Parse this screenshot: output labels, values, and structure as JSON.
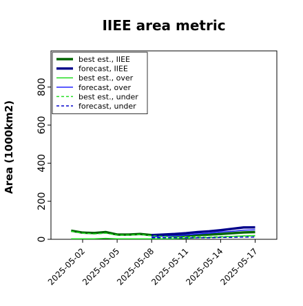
{
  "chart_data": {
    "type": "line",
    "title": "IIEE area metric",
    "xlabel": "",
    "ylabel": "Area (1000km2)",
    "ylim": [
      0,
      990
    ],
    "y_ticks": [
      0,
      200,
      400,
      600,
      800
    ],
    "x_ticks": [
      "2025-05-02",
      "2025-05-05",
      "2025-05-08",
      "2025-05-11",
      "2025-05-14",
      "2025-05-17"
    ],
    "x_tick_colors": [
      "#000000",
      "#000000",
      "#2e8b20",
      "#000000",
      "#000000",
      "#000000"
    ],
    "legend_position": "top-left",
    "grid": false,
    "dates": [
      "2025-05-01",
      "2025-05-02",
      "2025-05-03",
      "2025-05-04",
      "2025-05-05",
      "2025-05-06",
      "2025-05-07",
      "2025-05-08",
      "2025-05-09",
      "2025-05-10",
      "2025-05-11",
      "2025-05-12",
      "2025-05-13",
      "2025-05-14",
      "2025-05-15",
      "2025-05-16",
      "2025-05-17"
    ],
    "series": [
      {
        "name": "best est., IIEE",
        "color": "#006400",
        "style": "solid",
        "weight": "thick",
        "values": [
          45,
          35,
          33,
          38,
          25,
          25,
          28,
          22,
          20,
          18,
          20,
          22,
          25,
          28,
          32,
          36,
          38
        ]
      },
      {
        "name": "forecast, IIEE",
        "color": "#00008b",
        "style": "solid",
        "weight": "thick",
        "values": [
          null,
          null,
          null,
          null,
          null,
          null,
          null,
          22,
          25,
          28,
          32,
          38,
          42,
          48,
          55,
          62,
          63
        ]
      },
      {
        "name": "best est., over",
        "color": "#22dd22",
        "style": "solid",
        "weight": "thin",
        "values": [
          3,
          3,
          3,
          5,
          3,
          3,
          3,
          3,
          3,
          3,
          5,
          8,
          10,
          12,
          15,
          18,
          20
        ]
      },
      {
        "name": "forecast, over",
        "color": "#2222ff",
        "style": "solid",
        "weight": "thin",
        "values": [
          null,
          null,
          null,
          null,
          null,
          null,
          null,
          12,
          15,
          18,
          22,
          28,
          32,
          38,
          42,
          48,
          50
        ]
      },
      {
        "name": "best est., under",
        "color": "#22dd22",
        "style": "dashed",
        "weight": "thin",
        "values": [
          42,
          32,
          28,
          32,
          22,
          22,
          25,
          18,
          15,
          12,
          12,
          12,
          12,
          14,
          15,
          17,
          18
        ]
      },
      {
        "name": "forecast, under",
        "color": "#0000cc",
        "style": "dashed",
        "weight": "thin",
        "values": [
          null,
          null,
          null,
          null,
          null,
          null,
          null,
          8,
          8,
          8,
          8,
          8,
          8,
          10,
          10,
          12,
          12
        ]
      }
    ]
  }
}
